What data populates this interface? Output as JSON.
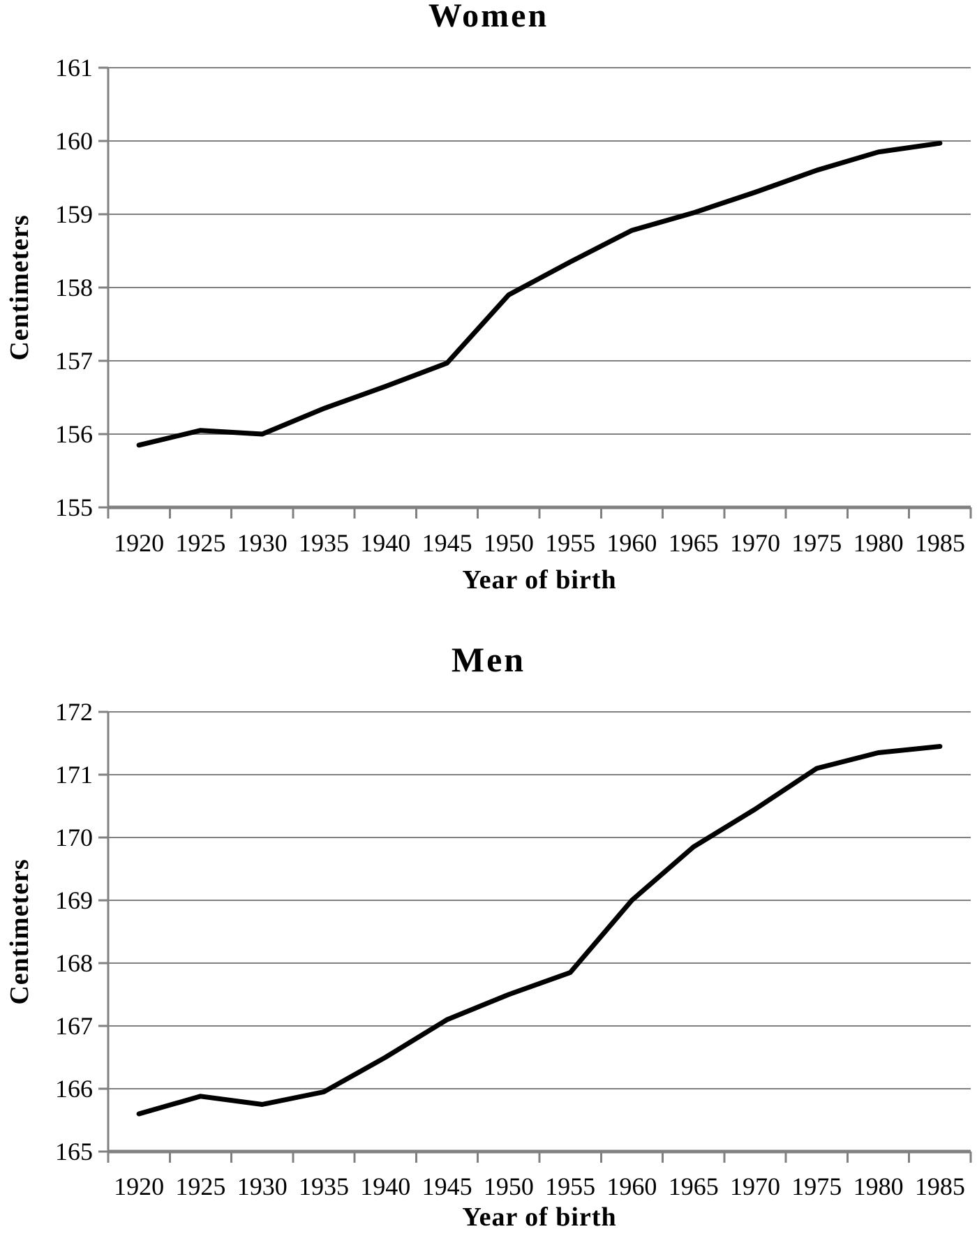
{
  "page": {
    "background": "#ffffff",
    "description": "Two stacked line charts showing mean body height by year of birth"
  },
  "palette": {
    "series_line": "#000000",
    "gridline": "#808080",
    "axis": "#808080",
    "text": "#000000"
  },
  "chart_data": [
    {
      "id": "women",
      "type": "line",
      "title": "Women",
      "xlabel": "Year of birth",
      "ylabel": "Centimeters",
      "x": [
        1920,
        1925,
        1930,
        1935,
        1940,
        1945,
        1950,
        1955,
        1960,
        1965,
        1970,
        1975,
        1980,
        1985
      ],
      "values": [
        155.85,
        156.05,
        156.0,
        156.35,
        156.65,
        156.97,
        157.9,
        158.35,
        158.78,
        159.02,
        159.3,
        159.6,
        159.85,
        159.97
      ],
      "ylim": [
        155,
        161
      ],
      "ytick_step": 1,
      "grid": true,
      "legend": "none"
    },
    {
      "id": "men",
      "type": "line",
      "title": "Men",
      "xlabel": "Year of birth",
      "ylabel": "Centimeters",
      "x": [
        1920,
        1925,
        1930,
        1935,
        1940,
        1945,
        1950,
        1955,
        1960,
        1965,
        1970,
        1975,
        1980,
        1985
      ],
      "values": [
        165.6,
        165.88,
        165.75,
        165.95,
        166.5,
        167.1,
        167.5,
        167.85,
        169.0,
        169.85,
        170.45,
        171.1,
        171.35,
        171.45
      ],
      "ylim": [
        165,
        172
      ],
      "ytick_step": 1,
      "grid": true,
      "legend": "none"
    }
  ]
}
